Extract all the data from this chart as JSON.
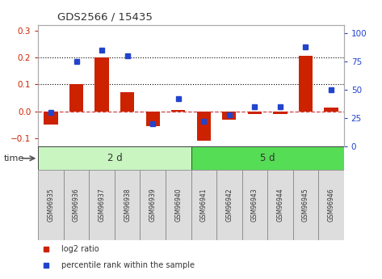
{
  "title": "GDS2566 / 15435",
  "samples": [
    "GSM96935",
    "GSM96936",
    "GSM96937",
    "GSM96938",
    "GSM96939",
    "GSM96940",
    "GSM96941",
    "GSM96942",
    "GSM96943",
    "GSM96944",
    "GSM96945",
    "GSM96946"
  ],
  "log2_ratio": [
    -0.05,
    0.1,
    0.2,
    0.07,
    -0.055,
    0.005,
    -0.11,
    -0.03,
    -0.01,
    -0.01,
    0.205,
    0.015
  ],
  "percentile_rank": [
    30,
    75,
    85,
    80,
    20,
    42,
    22,
    28,
    35,
    35,
    88,
    50
  ],
  "groups": [
    {
      "label": "2 d",
      "start": 0,
      "end": 6,
      "color": "#c8f5c0"
    },
    {
      "label": "5 d",
      "start": 6,
      "end": 12,
      "color": "#55dd55"
    }
  ],
  "ylim": [
    -0.13,
    0.32
  ],
  "y2lim": [
    0,
    107
  ],
  "yticks": [
    -0.1,
    0.0,
    0.1,
    0.2,
    0.3
  ],
  "y2ticks": [
    0,
    25,
    50,
    75,
    100
  ],
  "bar_color": "#cc2200",
  "dot_color": "#2244cc",
  "zero_line_color": "#cc4444",
  "dotted_line_color": "#000000",
  "bg_color": "#ffffff",
  "label_box_color": "#dddddd",
  "time_label": "time",
  "legend_items": [
    {
      "label": "log2 ratio",
      "color": "#cc2200"
    },
    {
      "label": "percentile rank within the sample",
      "color": "#2244cc"
    }
  ]
}
